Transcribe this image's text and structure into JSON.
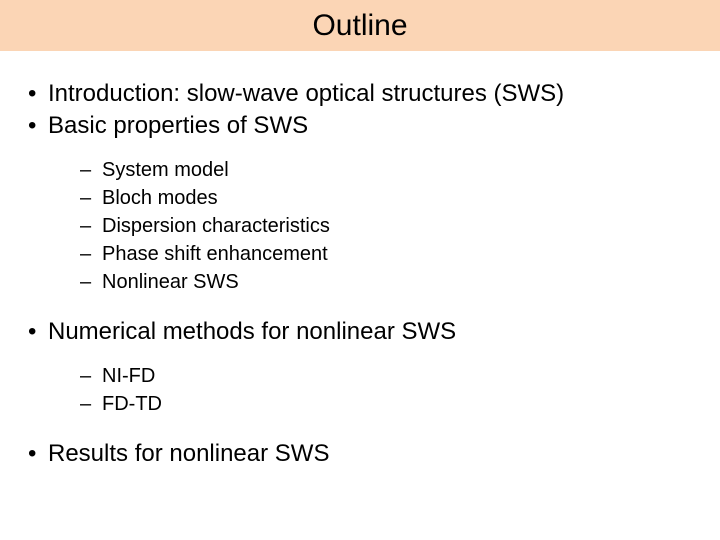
{
  "slide": {
    "title": "Outline",
    "title_bar_color": "#fbd5b5",
    "background_color": "#ffffff",
    "text_color": "#000000",
    "font_family": "Arial",
    "title_fontsize": 30,
    "bullet_lvl1_fontsize": 24,
    "bullet_lvl2_fontsize": 20,
    "items": [
      {
        "text": "Introduction: slow-wave optical structures (SWS)",
        "children": []
      },
      {
        "text": "Basic properties of SWS",
        "children": [
          {
            "text": "System model"
          },
          {
            "text": "Bloch modes"
          },
          {
            "text": "Dispersion characteristics"
          },
          {
            "text": "Phase shift enhancement"
          },
          {
            "text": "Nonlinear SWS"
          }
        ]
      },
      {
        "text": "Numerical methods for nonlinear SWS",
        "children": [
          {
            "text": "NI-FD"
          },
          {
            "text": "FD-TD"
          }
        ]
      },
      {
        "text": "Results for nonlinear SWS",
        "children": []
      }
    ]
  }
}
